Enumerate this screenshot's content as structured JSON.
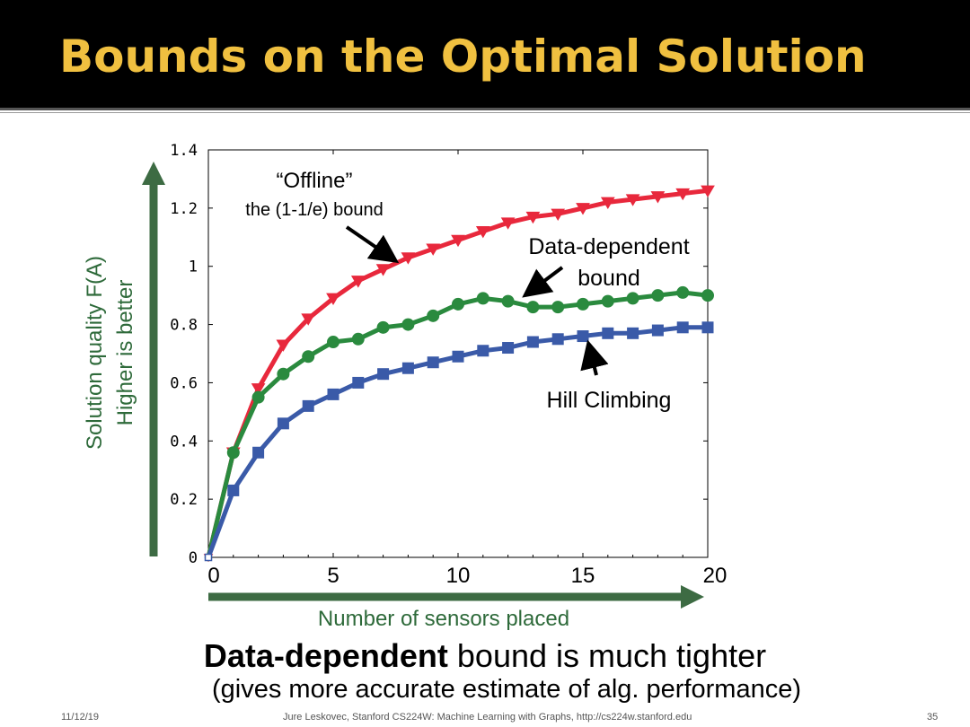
{
  "slide": {
    "title": "Bounds on the Optimal Solution",
    "caption_bold": "Data-dependent",
    "caption_rest": " bound is much tighter",
    "caption_sub": "(gives more accurate estimate of alg. performance)",
    "footer_date": "11/12/19",
    "footer_center": "Jure Leskovec, Stanford CS224W: Machine Learning with Graphs, http://cs224w.stanford.edu",
    "footer_page": "35"
  },
  "colors": {
    "title": "#f0c040",
    "axis_arrow": "#3d6b43",
    "offline": "#e8283c",
    "data_dependent": "#2a8a3e",
    "hill_climbing": "#3a5aa8"
  },
  "chart_data": {
    "type": "line",
    "ylabel": "Solution quality F(A)",
    "ylabel2": "Higher is better",
    "xlabel": "Number of sensors placed",
    "xlim": [
      0,
      20
    ],
    "ylim": [
      0,
      1.4
    ],
    "xticks": [
      "0",
      "5",
      "10",
      "15",
      "20"
    ],
    "yticks": [
      "0",
      "0.2",
      "0.4",
      "0.6",
      "0.8",
      "1",
      "1.2",
      "1.4"
    ],
    "x": [
      0,
      1,
      2,
      3,
      4,
      5,
      6,
      7,
      8,
      9,
      10,
      11,
      12,
      13,
      14,
      15,
      16,
      17,
      18,
      19,
      20
    ],
    "series": [
      {
        "key": "offline",
        "marker": "triangle-down",
        "values": [
          0,
          0.36,
          0.58,
          0.73,
          0.82,
          0.89,
          0.95,
          0.99,
          1.03,
          1.06,
          1.09,
          1.12,
          1.15,
          1.17,
          1.18,
          1.2,
          1.22,
          1.23,
          1.24,
          1.25,
          1.26
        ]
      },
      {
        "key": "data_dependent",
        "marker": "circle",
        "values": [
          0,
          0.36,
          0.55,
          0.63,
          0.69,
          0.74,
          0.75,
          0.79,
          0.8,
          0.83,
          0.87,
          0.89,
          0.88,
          0.86,
          0.86,
          0.87,
          0.88,
          0.89,
          0.9,
          0.91,
          0.9
        ]
      },
      {
        "key": "hill_climbing",
        "marker": "square",
        "values": [
          0,
          0.23,
          0.36,
          0.46,
          0.52,
          0.56,
          0.6,
          0.63,
          0.65,
          0.67,
          0.69,
          0.71,
          0.72,
          0.74,
          0.75,
          0.76,
          0.77,
          0.77,
          0.78,
          0.79,
          0.79
        ]
      }
    ],
    "annotations": {
      "offline_line1": "“Offline”",
      "offline_line2": "the (1-1/e) bound",
      "data_line1": "Data-dependent",
      "data_line2": "bound",
      "hill": "Hill Climbing"
    }
  }
}
